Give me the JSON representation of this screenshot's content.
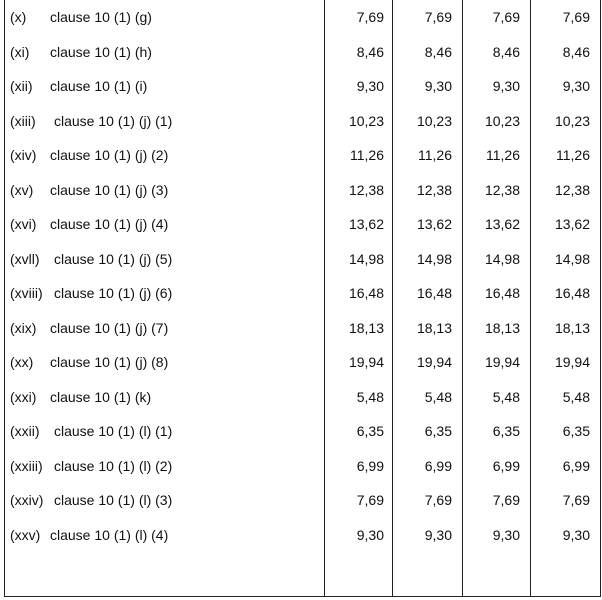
{
  "table": {
    "rows": [
      {
        "num": "(x)",
        "clause": "clause 10 (1) (g)",
        "values": [
          "7,69",
          "7,69",
          "7,69",
          "7,69"
        ]
      },
      {
        "num": "(xi)",
        "clause": "clause 10 (1) (h)",
        "values": [
          "8,46",
          "8,46",
          "8,46",
          "8,46"
        ]
      },
      {
        "num": "(xii)",
        "clause": "clause 10 (1) (i)",
        "values": [
          "9,30",
          "9,30",
          "9,30",
          "9,30"
        ]
      },
      {
        "num": "(xiii)",
        "clause": "clause 10 (1) (j) (1)",
        "values": [
          "10,23",
          "10,23",
          "10,23",
          "10,23"
        ]
      },
      {
        "num": "(xiv)",
        "clause": "clause 10 (1) (j) (2)",
        "values": [
          "11,26",
          "11,26",
          "11,26",
          "11,26"
        ]
      },
      {
        "num": "(xv)",
        "clause": "clause 10 (1) (j) (3)",
        "values": [
          "12,38",
          "12,38",
          "12,38",
          "12,38"
        ]
      },
      {
        "num": "(xvi)",
        "clause": "clause 10 (1) (j) (4)",
        "values": [
          "13,62",
          "13,62",
          "13,62",
          "13,62"
        ]
      },
      {
        "num": "(xvll)",
        "clause": "clause 10 (1) (j) (5)",
        "values": [
          "14,98",
          "14,98",
          "14,98",
          "14,98"
        ]
      },
      {
        "num": "(xviii)",
        "clause": "clause 10 (1) (j) (6)",
        "values": [
          "16,48",
          "16,48",
          "16,48",
          "16,48"
        ]
      },
      {
        "num": "(xix)",
        "clause": "clause 10 (1) (j) (7)",
        "values": [
          "18,13",
          "18,13",
          "18,13",
          "18,13"
        ]
      },
      {
        "num": "(xx)",
        "clause": "clause 10 (1) (j) (8)",
        "values": [
          "19,94",
          "19,94",
          "19,94",
          "19,94"
        ]
      },
      {
        "num": "(xxi)",
        "clause": "clause 10 (1) (k)",
        "values": [
          "5,48",
          "5,48",
          "5,48",
          "5,48"
        ]
      },
      {
        "num": "(xxii)",
        "clause": "clause 10 (1) (l) (1)",
        "values": [
          "6,35",
          "6,35",
          "6,35",
          "6,35"
        ]
      },
      {
        "num": "(xxiii)",
        "clause": "clause 10 (1) (l) (2)",
        "values": [
          "6,99",
          "6,99",
          "6,99",
          "6,99"
        ]
      },
      {
        "num": "(xxiv)",
        "clause": "clause 10 (1) (l) (3)",
        "values": [
          "7,69",
          "7,69",
          "7,69",
          "7,69"
        ]
      },
      {
        "num": "(xxv)",
        "clause": "clause 10 (1) (l) (4)",
        "values": [
          "9,30",
          "9,30",
          "9,30",
          "9,30"
        ]
      }
    ]
  }
}
